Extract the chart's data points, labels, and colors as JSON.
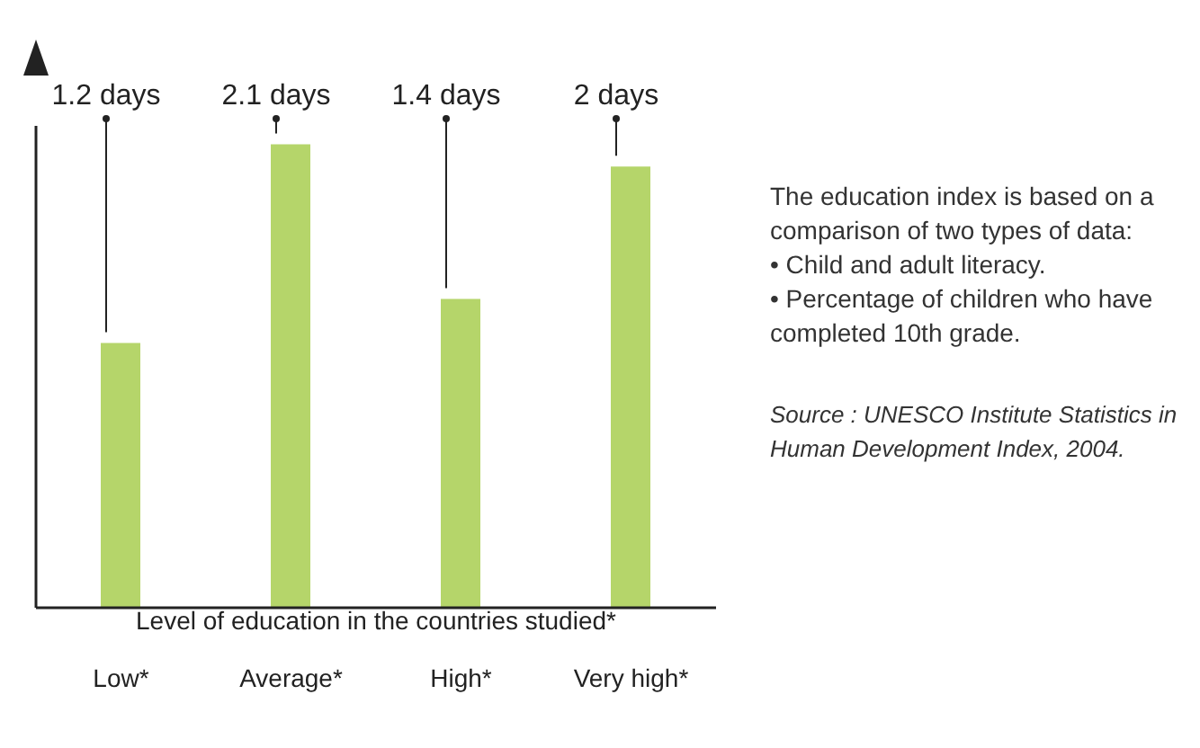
{
  "chart_data": {
    "type": "bar",
    "xlabel": "Level of education in the countries studied*",
    "categories": [
      "Low*",
      "Average*",
      "High*",
      "Very high*"
    ],
    "values": [
      1.2,
      2.1,
      1.4,
      2
    ],
    "color": "#b5d56a",
    "value_labels": [
      "1.2 days",
      "2.1 days",
      "1.4 days",
      "2 days"
    ],
    "grid": false,
    "legend": false,
    "annotations": [
      "The education index is based on a comparison of two types of data:",
      "• Child and adult literacy.",
      "• Percentage of children who have completed 10th grade.",
      "Source : UNESCO Institute Statistics in Human Development Index, 2004."
    ]
  }
}
